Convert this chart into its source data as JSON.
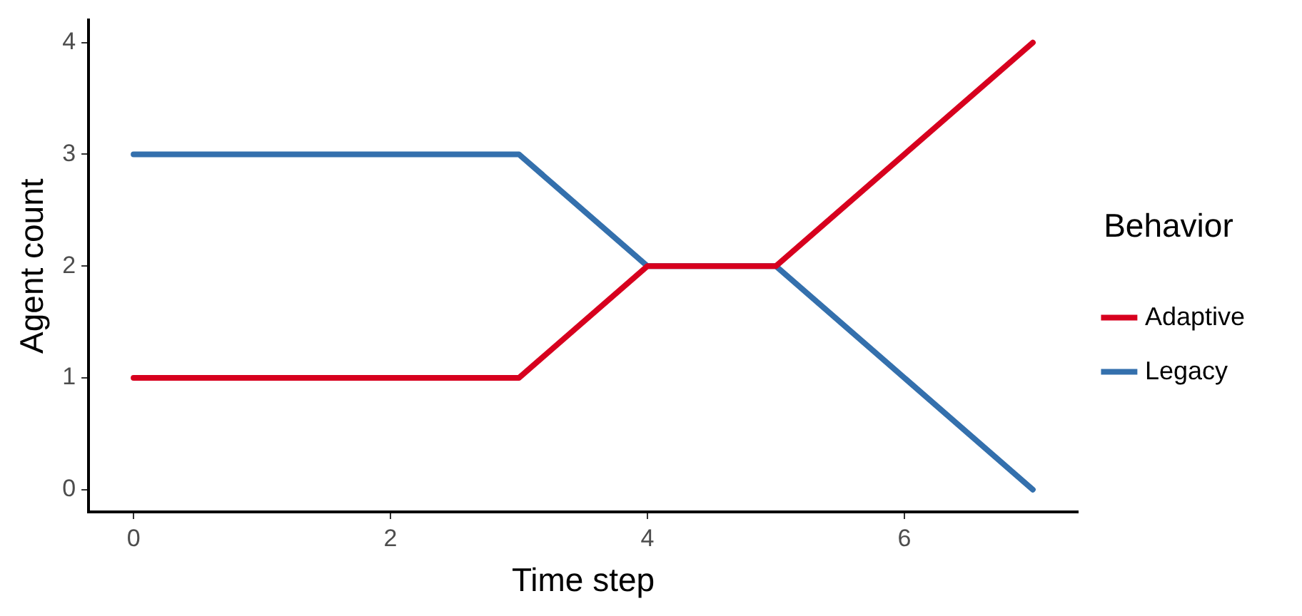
{
  "chart_data": {
    "type": "line",
    "xlabel": "Time step",
    "ylabel": "Agent count",
    "legend_title": "Behavior",
    "x": [
      0,
      1,
      2,
      3,
      4,
      5,
      6,
      7
    ],
    "series": [
      {
        "name": "Adaptive",
        "color": "#d7001e",
        "values": [
          1,
          1,
          1,
          1,
          2,
          2,
          3,
          4
        ]
      },
      {
        "name": "Legacy",
        "color": "#3470ad",
        "values": [
          3,
          3,
          3,
          3,
          2,
          2,
          1,
          0
        ]
      }
    ],
    "xlim": [
      -0.35,
      7.35
    ],
    "xticks": [
      0,
      2,
      4,
      6
    ],
    "ylim": [
      -0.2,
      4.2
    ],
    "yticks": [
      0,
      1,
      2,
      3,
      4
    ],
    "grid": false,
    "legend": "right",
    "marker": "none",
    "line_style": "solid"
  }
}
